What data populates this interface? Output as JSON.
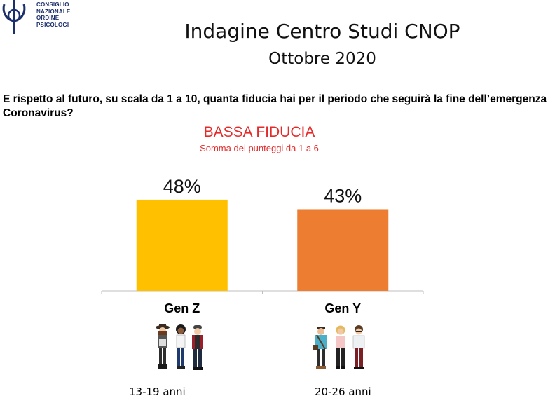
{
  "logo": {
    "lines": [
      "CONSIGLIO",
      "NAZIONALE",
      "ORDINE",
      "PSICOLOGI"
    ],
    "color": "#1b2f6b"
  },
  "header": {
    "title": "Indagine Centro Studi CNOP",
    "subtitle": "Ottobre 2020"
  },
  "question": "E rispetto al futuro, su scala da 1 a 10, quanta fiducia hai per il periodo che seguirà la fine dell’emergenza Coronavirus?",
  "chart_data": {
    "type": "bar",
    "title": "BASSA FIDUCIA",
    "subtitle": "Somma dei punteggi da 1 a 6",
    "categories": [
      "Gen Z",
      "Gen Y"
    ],
    "values": [
      48,
      43
    ],
    "value_labels": [
      "48%",
      "43%"
    ],
    "colors": [
      "#ffc000",
      "#ed7d31"
    ],
    "xlabel": "",
    "ylabel": "",
    "ylim": [
      0,
      100
    ],
    "grid": false,
    "legend": "none"
  },
  "age_ranges": [
    "13-19 anni",
    "20-26 anni"
  ]
}
